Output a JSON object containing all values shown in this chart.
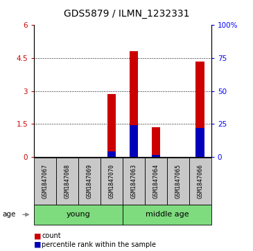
{
  "title": "GDS5879 / ILMN_1232331",
  "samples": [
    "GSM1847067",
    "GSM1847068",
    "GSM1847069",
    "GSM1847070",
    "GSM1847063",
    "GSM1847064",
    "GSM1847065",
    "GSM1847066"
  ],
  "count_values": [
    0.0,
    0.0,
    0.0,
    2.85,
    4.82,
    1.35,
    0.0,
    4.35
  ],
  "percentile_values": [
    0.0,
    0.0,
    0.0,
    4.0,
    24.0,
    1.5,
    0.0,
    22.0
  ],
  "ylim_left": [
    0,
    6
  ],
  "ylim_right": [
    0,
    100
  ],
  "yticks_left": [
    0,
    1.5,
    3.0,
    4.5,
    6
  ],
  "yticks_right": [
    0,
    25,
    50,
    75,
    100
  ],
  "ytick_labels_left": [
    "0",
    "1.5",
    "3",
    "4.5",
    "6"
  ],
  "ytick_labels_right": [
    "0",
    "25",
    "50",
    "75",
    "100%"
  ],
  "groups": [
    {
      "label": "young",
      "start": 0,
      "end": 4
    },
    {
      "label": "middle age",
      "start": 4,
      "end": 8
    }
  ],
  "group_color": "#7EDB7E",
  "sample_box_color": "#C8C8C8",
  "age_label": "age",
  "bar_width": 0.4,
  "red_color": "#CC0000",
  "blue_color": "#0000BB",
  "legend_items": [
    "count",
    "percentile rank within the sample"
  ],
  "title_fontsize": 10,
  "axis_fontsize": 7.5,
  "tick_fontsize": 7.5
}
